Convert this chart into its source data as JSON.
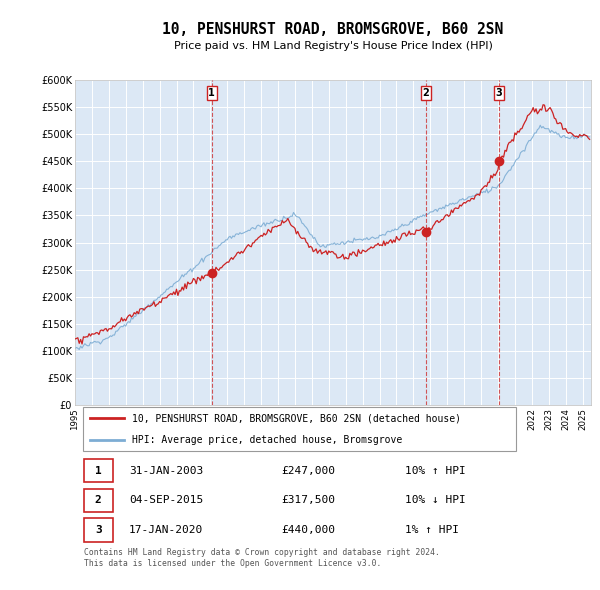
{
  "title": "10, PENSHURST ROAD, BROMSGROVE, B60 2SN",
  "subtitle": "Price paid vs. HM Land Registry's House Price Index (HPI)",
  "ylim": [
    0,
    600000
  ],
  "yticks": [
    0,
    50000,
    100000,
    150000,
    200000,
    250000,
    300000,
    350000,
    400000,
    450000,
    500000,
    550000,
    600000
  ],
  "ytick_labels": [
    "£0",
    "£50K",
    "£100K",
    "£150K",
    "£200K",
    "£250K",
    "£300K",
    "£350K",
    "£400K",
    "£450K",
    "£500K",
    "£550K",
    "£600K"
  ],
  "bg_color": "#dce8f5",
  "grid_color": "#ffffff",
  "red_color": "#cc2222",
  "blue_color": "#7dadd4",
  "transactions": [
    {
      "label": "1",
      "date": "31-JAN-2003",
      "price": 247000,
      "year": 2003.08,
      "price_str": "£247,000",
      "hpi_note": "10% ↑ HPI"
    },
    {
      "label": "2",
      "date": "04-SEP-2015",
      "price": 317500,
      "year": 2015.75,
      "price_str": "£317,500",
      "hpi_note": "10% ↓ HPI"
    },
    {
      "label": "3",
      "date": "17-JAN-2020",
      "price": 440000,
      "year": 2020.05,
      "price_str": "£440,000",
      "hpi_note": "1% ↑ HPI"
    }
  ],
  "legend_property": "10, PENSHURST ROAD, BROMSGROVE, B60 2SN (detached house)",
  "legend_hpi": "HPI: Average price, detached house, Bromsgrove",
  "footer": "Contains HM Land Registry data © Crown copyright and database right 2024.\nThis data is licensed under the Open Government Licence v3.0.",
  "xmin": 1995,
  "xmax": 2025.5
}
